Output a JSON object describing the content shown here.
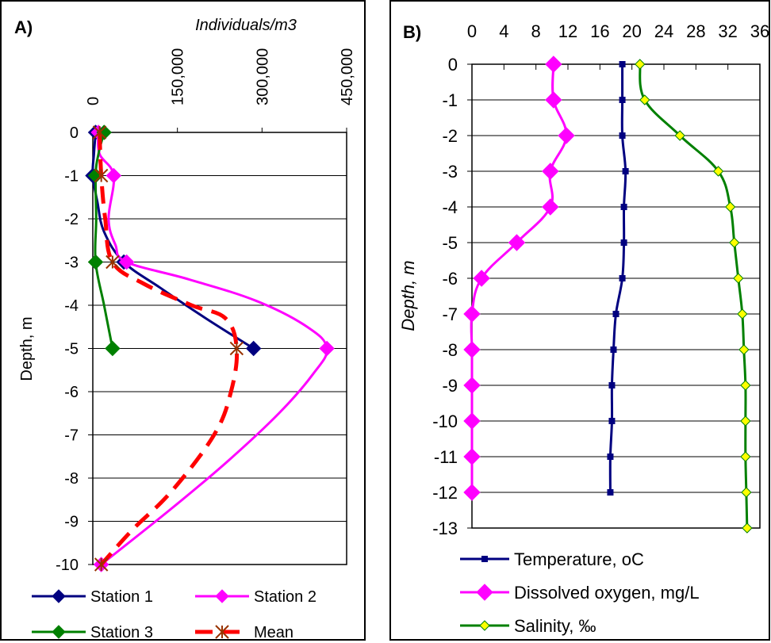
{
  "chart_data": [
    {
      "type": "line",
      "panel_label": "A)",
      "title": "Individuals/m3",
      "ylabel": "Depth, m",
      "xlim": [
        0,
        450000
      ],
      "ylim": [
        -10,
        0
      ],
      "x_ticks": [
        "0",
        "150,000",
        "300,000",
        "450,000"
      ],
      "y_ticks": [
        "0",
        "-1",
        "-2",
        "-3",
        "-4",
        "-5",
        "-6",
        "-7",
        "-8",
        "-9",
        "-10"
      ],
      "legend": [
        {
          "label": "Station 1",
          "color": "#000080",
          "style": "line",
          "marker": "diamond"
        },
        {
          "label": "Station 2",
          "color": "#ff00ff",
          "style": "line",
          "marker": "diamond"
        },
        {
          "label": "Station 3",
          "color": "#008000",
          "style": "line",
          "marker": "diamond"
        },
        {
          "label": "Mean",
          "color": "#ff0000",
          "style": "dash",
          "marker": "star"
        }
      ],
      "series": [
        {
          "name": "Station 1",
          "color": "#000080",
          "marker": "diamond",
          "dashed": false,
          "points": [
            [
              5000,
              0
            ],
            [
              0,
              -1
            ],
            [
              55000,
              -3
            ],
            [
              285000,
              -5
            ]
          ],
          "path": [
            [
              5000,
              0
            ],
            [
              2000,
              -0.5
            ],
            [
              0,
              -1
            ],
            [
              8000,
              -1.6
            ],
            [
              20000,
              -2.3
            ],
            [
              55000,
              -3
            ],
            [
              120000,
              -3.6
            ],
            [
              200000,
              -4.3
            ],
            [
              285000,
              -5
            ]
          ]
        },
        {
          "name": "Station 2",
          "color": "#ff00ff",
          "marker": "diamond",
          "dashed": false,
          "points": [
            [
              10000,
              0
            ],
            [
              37000,
              -1
            ],
            [
              60000,
              -3
            ],
            [
              415000,
              -5
            ],
            [
              15000,
              -10
            ]
          ],
          "path": [
            [
              10000,
              0
            ],
            [
              12000,
              -0.5
            ],
            [
              37000,
              -1
            ],
            [
              28000,
              -2
            ],
            [
              40000,
              -2.6
            ],
            [
              60000,
              -3
            ],
            [
              170000,
              -3.4
            ],
            [
              290000,
              -3.9
            ],
            [
              380000,
              -4.5
            ],
            [
              415000,
              -5
            ],
            [
              390000,
              -5.6
            ],
            [
              330000,
              -6.5
            ],
            [
              240000,
              -7.6
            ],
            [
              140000,
              -8.7
            ],
            [
              15000,
              -10
            ]
          ]
        },
        {
          "name": "Station 3",
          "color": "#008000",
          "marker": "diamond",
          "dashed": false,
          "points": [
            [
              20000,
              0
            ],
            [
              5000,
              -1
            ],
            [
              5000,
              -3
            ],
            [
              35000,
              -5
            ]
          ],
          "path": [
            [
              20000,
              0
            ],
            [
              10000,
              -0.5
            ],
            [
              5000,
              -1
            ],
            [
              6000,
              -2
            ],
            [
              5000,
              -3
            ],
            [
              20000,
              -4
            ],
            [
              35000,
              -5
            ]
          ]
        },
        {
          "name": "Mean",
          "color": "#ff0000",
          "marker": "star",
          "dashed": true,
          "points": [
            [
              12000,
              0
            ],
            [
              15000,
              -1
            ],
            [
              35000,
              -3
            ],
            [
              255000,
              -5
            ],
            [
              15000,
              -10
            ]
          ],
          "path": [
            [
              12000,
              0
            ],
            [
              15000,
              -1
            ],
            [
              22000,
              -2
            ],
            [
              35000,
              -3
            ],
            [
              90000,
              -3.5
            ],
            [
              175000,
              -4
            ],
            [
              235000,
              -4.3
            ],
            [
              255000,
              -5
            ],
            [
              245000,
              -6
            ],
            [
              215000,
              -7
            ],
            [
              140000,
              -8.3
            ],
            [
              70000,
              -9.2
            ],
            [
              15000,
              -10
            ]
          ]
        }
      ]
    },
    {
      "type": "line",
      "panel_label": "B)",
      "ylabel": "Depth, m",
      "xlim": [
        0,
        36
      ],
      "ylim": [
        -13,
        0
      ],
      "x_ticks": [
        "0",
        "4",
        "8",
        "12",
        "16",
        "20",
        "24",
        "28",
        "32",
        "36"
      ],
      "y_ticks": [
        "0",
        "-1",
        "-2",
        "-3",
        "-4",
        "-5",
        "-6",
        "-7",
        "-8",
        "-9",
        "-10",
        "-11",
        "-12",
        "-13"
      ],
      "legend": [
        {
          "label": "Temperature, oC",
          "color": "#000080",
          "marker": "square"
        },
        {
          "label": "Dissolved oxygen, mg/L",
          "color": "#ff00ff",
          "marker": "diamond"
        },
        {
          "label": "Salinity, ‰",
          "color": "#008000",
          "marker": "diamond-yellow"
        }
      ],
      "series": [
        {
          "name": "Temperature, oC",
          "color": "#000080",
          "marker": "square",
          "points": [
            [
              18.8,
              0
            ],
            [
              18.8,
              -1
            ],
            [
              18.8,
              -2
            ],
            [
              19.2,
              -3
            ],
            [
              19.0,
              -4
            ],
            [
              19.0,
              -5
            ],
            [
              18.8,
              -6
            ],
            [
              18.0,
              -7
            ],
            [
              17.7,
              -8
            ],
            [
              17.5,
              -9
            ],
            [
              17.5,
              -10
            ],
            [
              17.3,
              -11
            ],
            [
              17.3,
              -12
            ]
          ]
        },
        {
          "name": "Dissolved oxygen, mg/L",
          "color": "#ff00ff",
          "marker": "diamond",
          "points": [
            [
              10.2,
              0
            ],
            [
              10.2,
              -1
            ],
            [
              11.8,
              -2
            ],
            [
              9.8,
              -3
            ],
            [
              9.8,
              -4
            ],
            [
              5.6,
              -5
            ],
            [
              1.2,
              -6
            ],
            [
              0,
              -7
            ],
            [
              0,
              -8
            ],
            [
              0,
              -9
            ],
            [
              0,
              -10
            ],
            [
              0,
              -11
            ],
            [
              0,
              -12
            ]
          ]
        },
        {
          "name": "Salinity, ‰",
          "color": "#008000",
          "marker": "diamond-yellow",
          "points": [
            [
              21.0,
              0
            ],
            [
              21.6,
              -1
            ],
            [
              26.0,
              -2
            ],
            [
              30.8,
              -3
            ],
            [
              32.3,
              -4
            ],
            [
              32.8,
              -5
            ],
            [
              33.3,
              -6
            ],
            [
              33.8,
              -7
            ],
            [
              34.0,
              -8
            ],
            [
              34.2,
              -9
            ],
            [
              34.2,
              -10
            ],
            [
              34.2,
              -11
            ],
            [
              34.3,
              -12
            ],
            [
              34.4,
              -13
            ]
          ]
        }
      ]
    }
  ]
}
